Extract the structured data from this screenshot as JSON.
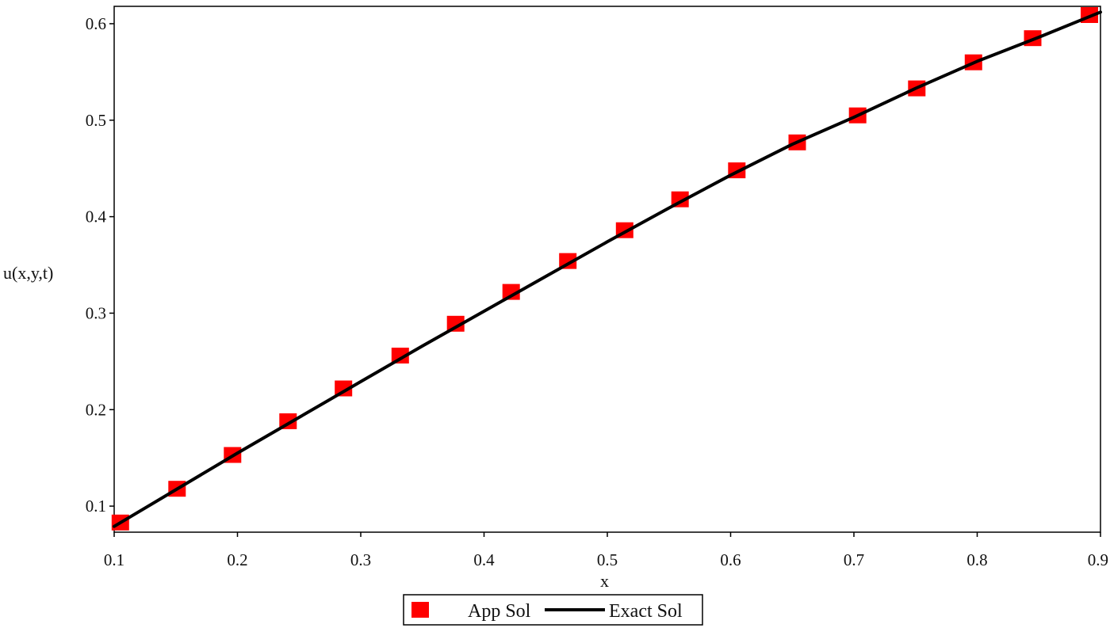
{
  "chart_data": {
    "type": "line",
    "xlabel": "x",
    "ylabel": "u(x,y,t)",
    "xlim": [
      0.1,
      0.9
    ],
    "ylim": [
      0.073,
      0.618
    ],
    "xticks": [
      "0.1",
      "0.2",
      "0.3",
      "0.4",
      "0.5",
      "0.6",
      "0.7",
      "0.8",
      "0.9"
    ],
    "yticks": [
      "0.1",
      "0.2",
      "0.3",
      "0.4",
      "0.5",
      "0.6"
    ],
    "grid": false,
    "legend_position": "bottom-center",
    "series": [
      {
        "name": "App Sol",
        "style": "markers",
        "color": "#ff0000",
        "x": [
          0.105,
          0.151,
          0.196,
          0.241,
          0.286,
          0.332,
          0.377,
          0.422,
          0.468,
          0.514,
          0.559,
          0.605,
          0.654,
          0.703,
          0.751,
          0.797,
          0.845,
          0.891
        ],
        "y": [
          0.083,
          0.118,
          0.153,
          0.188,
          0.222,
          0.256,
          0.289,
          0.322,
          0.354,
          0.386,
          0.418,
          0.448,
          0.477,
          0.505,
          0.533,
          0.56,
          0.585,
          0.609
        ]
      },
      {
        "name": "Exact Sol",
        "style": "line",
        "color": "#000000",
        "x": [
          0.1,
          0.15,
          0.2,
          0.25,
          0.3,
          0.35,
          0.4,
          0.45,
          0.5,
          0.55,
          0.6,
          0.65,
          0.7,
          0.75,
          0.8,
          0.85,
          0.9
        ],
        "y": [
          0.079,
          0.117,
          0.155,
          0.192,
          0.229,
          0.266,
          0.302,
          0.338,
          0.374,
          0.409,
          0.443,
          0.475,
          0.503,
          0.533,
          0.561,
          0.586,
          0.612
        ]
      }
    ]
  }
}
